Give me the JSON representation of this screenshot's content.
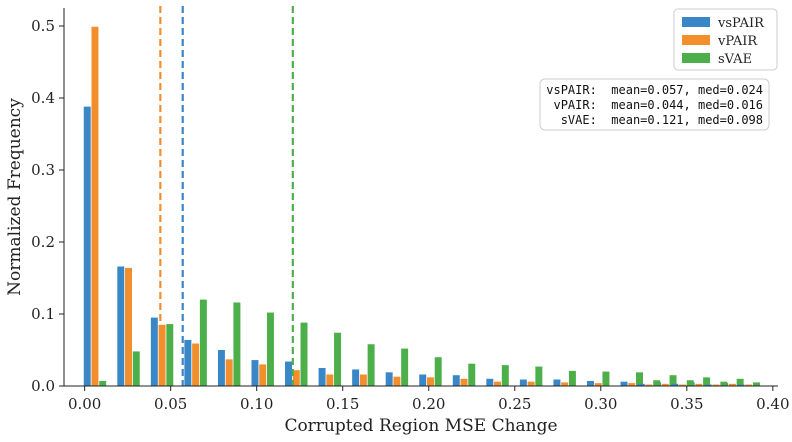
{
  "chart_data": {
    "type": "bar",
    "title": "",
    "xlabel": "Corrupted Region MSE Change",
    "ylabel": "Normalized Frequency",
    "xlim": [
      -0.012,
      0.403
    ],
    "ylim": [
      0,
      0.525
    ],
    "xticks": [
      "0.00",
      "0.05",
      "0.10",
      "0.15",
      "0.20",
      "0.25",
      "0.30",
      "0.35",
      "0.40"
    ],
    "xtick_values": [
      0.0,
      0.05,
      0.1,
      0.15,
      0.2,
      0.25,
      0.3,
      0.35,
      0.4
    ],
    "yticks": [
      "0.0",
      "0.1",
      "0.2",
      "0.3",
      "0.4",
      "0.5"
    ],
    "ytick_values": [
      0.0,
      0.1,
      0.2,
      0.3,
      0.4,
      0.5
    ],
    "bin_centers": [
      0.006,
      0.0255,
      0.045,
      0.0645,
      0.084,
      0.1035,
      0.123,
      0.1425,
      0.162,
      0.1815,
      0.201,
      0.2205,
      0.24,
      0.2595,
      0.279,
      0.2985,
      0.318,
      0.3375,
      0.357,
      0.3765
    ],
    "bar_width": 0.0045,
    "series": [
      {
        "name": "vsPAIR",
        "color": "#3a87c7",
        "values": [
          0.388,
          0.166,
          0.095,
          0.064,
          0.05,
          0.036,
          0.034,
          0.025,
          0.023,
          0.019,
          0.016,
          0.015,
          0.01,
          0.009,
          0.009,
          0.007,
          0.006,
          0.005,
          0.005,
          0.004
        ]
      },
      {
        "name": "vPAIR",
        "color": "#f28e2b",
        "values": [
          0.499,
          0.164,
          0.085,
          0.059,
          0.037,
          0.03,
          0.022,
          0.016,
          0.016,
          0.013,
          0.012,
          0.01,
          0.006,
          0.006,
          0.005,
          0.004,
          0.004,
          0.003,
          0.003,
          0.003
        ]
      },
      {
        "name": "sVAE",
        "color": "#4daf4a",
        "values": [
          0.007,
          0.048,
          0.086,
          0.12,
          0.116,
          0.102,
          0.088,
          0.074,
          0.058,
          0.052,
          0.04,
          0.031,
          0.029,
          0.027,
          0.021,
          0.02,
          0.019,
          0.015,
          0.012,
          0.01
        ]
      }
    ],
    "extra_tail": [
      {
        "name": "vsPAIR",
        "values": [
          0.003,
          0.003,
          0.002,
          0.002,
          0.002,
          0.002,
          0.002
        ]
      },
      {
        "name": "vPAIR",
        "values": [
          0.002,
          0.002,
          0.002,
          0.002,
          0.002,
          0.001,
          0.001
        ]
      },
      {
        "name": "sVAE",
        "values": [
          0.008,
          0.008,
          0.006,
          0.005,
          0.004,
          0.003,
          0.002
        ]
      }
    ],
    "extra_tail_centers": [
      0.318,
      0.3375,
      0.357,
      0.3765,
      0.3375,
      0.357,
      0.3765
    ],
    "vlines": [
      {
        "series": "vsPAIR",
        "x": 0.057,
        "color": "#3a87c7",
        "style": "dashed"
      },
      {
        "series": "vPAIR",
        "x": 0.044,
        "color": "#f28e2b",
        "style": "dashed"
      },
      {
        "series": "sVAE",
        "x": 0.121,
        "color": "#4daf4a",
        "style": "dashed"
      }
    ],
    "legend": {
      "placement": "top-right",
      "entries": [
        {
          "label": "vsPAIR",
          "color": "#3a87c7"
        },
        {
          "label": "vPAIR",
          "color": "#f28e2b"
        },
        {
          "label": "sVAE",
          "color": "#4daf4a"
        }
      ]
    },
    "stats_box": {
      "placement": "upper-right",
      "lines": [
        "vsPAIR:  mean=0.057, med=0.024",
        " vPAIR:  mean=0.044, med=0.016",
        "  sVAE:  mean=0.121, med=0.098"
      ]
    }
  }
}
